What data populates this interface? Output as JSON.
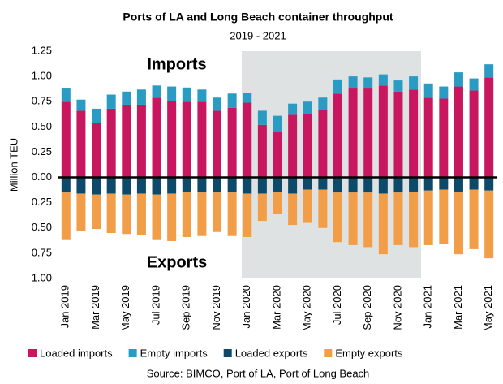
{
  "chart_data": {
    "type": "stacked_bar",
    "title": "Ports of LA and Long Beach container throughput",
    "subtitle": "2019 - 2021",
    "y_label": "Million TEU",
    "annotations": [
      "Imports",
      "Exports"
    ],
    "source": "Source: BIMCO, Port of LA, Port of Long Beach",
    "categories": [
      "Jan 2019",
      null,
      "Mar 2019",
      null,
      "May 2019",
      null,
      "Jul 2019",
      null,
      "Sep 2019",
      null,
      "Nov 2019",
      null,
      "Jan 2020",
      null,
      "Mar 2020",
      null,
      "May 2020",
      null,
      "Jul 2020",
      null,
      "Sep 2020",
      null,
      "Nov 2020",
      null,
      "Jan 2021",
      null,
      "Mar 2021",
      null,
      "May 2021"
    ],
    "series": [
      {
        "name": "Loaded imports",
        "color": "#c8175f",
        "values": [
          0.75,
          0.66,
          0.54,
          0.68,
          0.72,
          0.72,
          0.79,
          0.76,
          0.75,
          0.75,
          0.66,
          0.69,
          0.74,
          0.52,
          0.45,
          0.62,
          0.63,
          0.67,
          0.83,
          0.88,
          0.88,
          0.91,
          0.85,
          0.87,
          0.79,
          0.78,
          0.9,
          0.86,
          0.99
        ]
      },
      {
        "name": "Empty imports",
        "color": "#2a9bc3",
        "values": [
          0.13,
          0.11,
          0.14,
          0.14,
          0.13,
          0.15,
          0.12,
          0.14,
          0.14,
          0.12,
          0.13,
          0.14,
          0.1,
          0.14,
          0.16,
          0.11,
          0.12,
          0.12,
          0.14,
          0.12,
          0.11,
          0.11,
          0.11,
          0.13,
          0.14,
          0.12,
          0.14,
          0.12,
          0.13
        ]
      },
      {
        "name": "Loaded exports",
        "color": "#0d4a69",
        "values": [
          -0.15,
          -0.16,
          -0.17,
          -0.16,
          -0.17,
          -0.16,
          -0.17,
          -0.16,
          -0.14,
          -0.15,
          -0.15,
          -0.15,
          -0.16,
          -0.16,
          -0.14,
          -0.16,
          -0.12,
          -0.12,
          -0.15,
          -0.15,
          -0.15,
          -0.16,
          -0.15,
          -0.14,
          -0.13,
          -0.12,
          -0.14,
          -0.12,
          -0.13
        ]
      },
      {
        "name": "Empty exports",
        "color": "#f29d48",
        "values": [
          -0.47,
          -0.37,
          -0.34,
          -0.39,
          -0.39,
          -0.41,
          -0.45,
          -0.47,
          -0.45,
          -0.43,
          -0.39,
          -0.43,
          -0.43,
          -0.27,
          -0.22,
          -0.31,
          -0.33,
          -0.38,
          -0.49,
          -0.52,
          -0.54,
          -0.6,
          -0.52,
          -0.55,
          -0.54,
          -0.54,
          -0.62,
          -0.59,
          -0.67
        ]
      }
    ],
    "ylim": [
      -1,
      1.25
    ],
    "yticks": [
      1.25,
      {
        "value": 1,
        "label": "1.00"
      },
      0.75,
      {
        "value": 0.5,
        "label": "0.50"
      },
      0.25,
      {
        "value": 0,
        "label": "0.00"
      },
      {
        "value": -0.25,
        "label": "0.25"
      },
      {
        "value": -0.5,
        "label": "0.50"
      },
      {
        "value": -0.75,
        "label": "0.75"
      },
      {
        "value": -1,
        "label": "1.00"
      }
    ],
    "grid": false,
    "legend": "bottom"
  }
}
